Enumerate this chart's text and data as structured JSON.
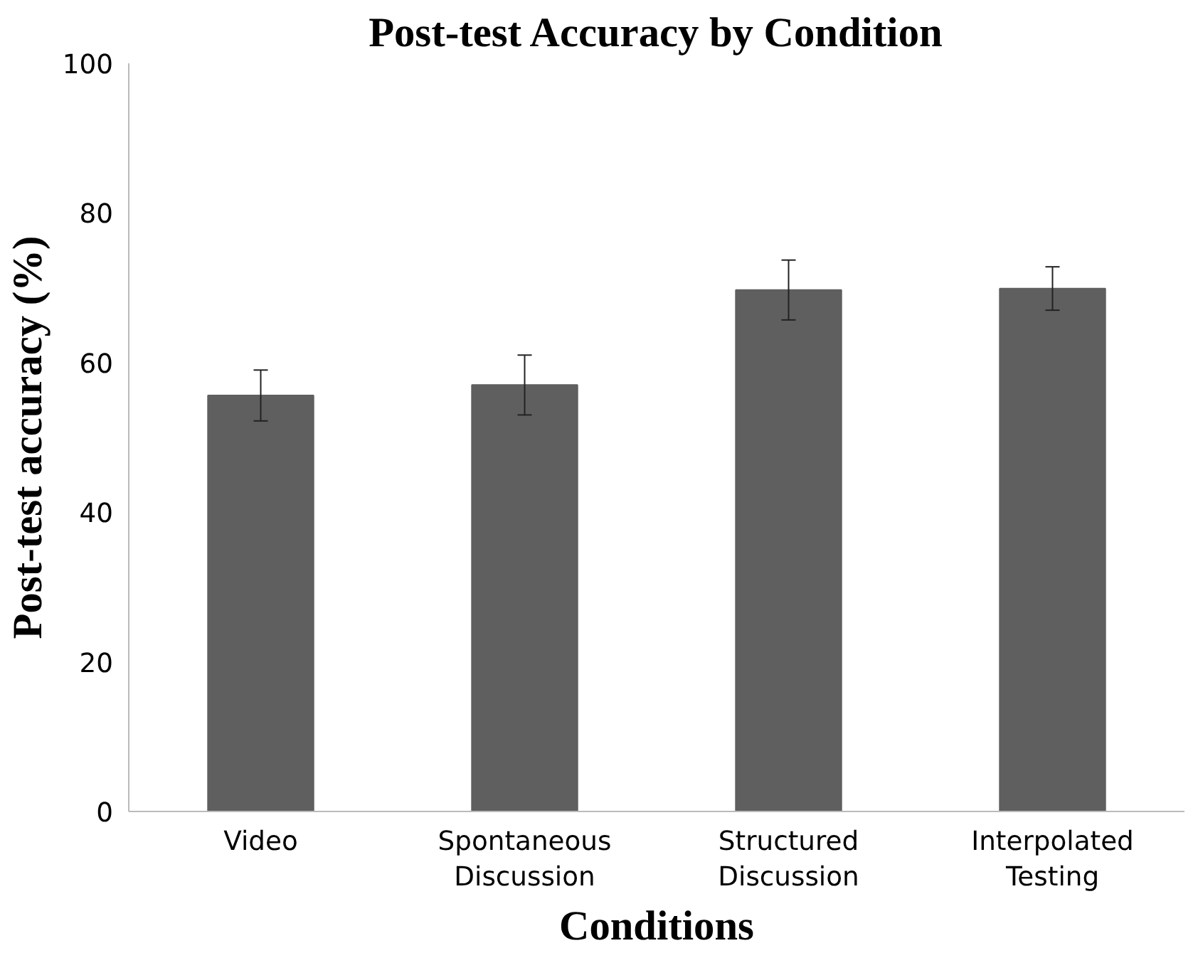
{
  "chart_data": {
    "type": "bar",
    "title": "Post-test Accuracy by Condition",
    "xlabel": "Conditions",
    "ylabel": "Post-test accuracy (%)",
    "categories": [
      "Video",
      "Spontaneous Discussion",
      "Structured Discussion",
      "Interpolated Testing"
    ],
    "values": [
      55.6,
      57.0,
      69.7,
      69.9
    ],
    "errors": [
      3.4,
      4.0,
      4.0,
      2.9
    ],
    "color": "#5f5f5f",
    "ylim": [
      0,
      100
    ],
    "yticks": [
      0,
      20,
      40,
      60,
      80,
      100
    ],
    "grid": false
  }
}
